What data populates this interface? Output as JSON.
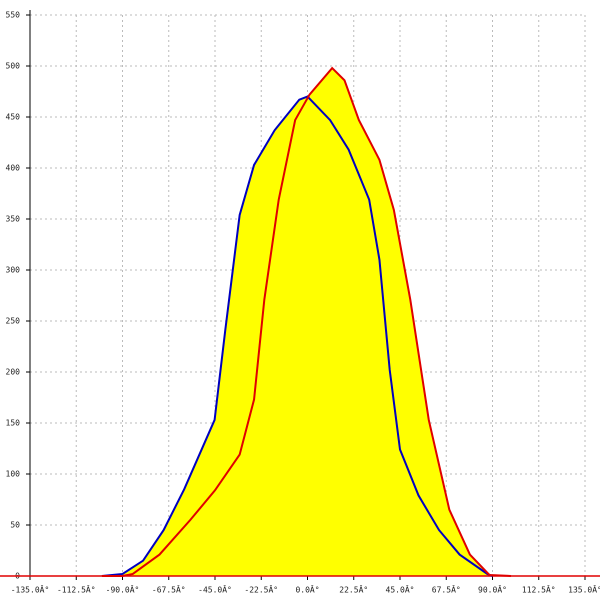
{
  "chart_data": {
    "type": "area-line",
    "series": [
      {
        "color": "#0000c0",
        "fill": "#ffff00",
        "x": [
          -100,
          -90,
          -80,
          -70,
          -60,
          -45.2,
          -40,
          -33,
          -26,
          -16,
          -4,
          0,
          11,
          20,
          30,
          35,
          40,
          45,
          54,
          64,
          74,
          87.5,
          90
        ],
        "values": [
          0,
          2,
          15,
          45,
          85,
          153,
          241,
          354,
          403,
          437,
          467,
          470,
          447,
          418,
          369,
          310,
          202,
          124,
          79,
          45,
          21,
          2,
          0
        ]
      },
      {
        "color": "#e00000",
        "fill": "#ffff00",
        "x": [
          -100,
          -90,
          -85,
          -72,
          -57,
          -45,
          -33,
          -26,
          -21,
          -14,
          -6,
          1,
          12,
          18,
          25,
          35,
          42,
          50,
          59,
          69,
          79,
          88.5,
          99
        ],
        "values": [
          0,
          0,
          2,
          21,
          55,
          84,
          119,
          173,
          271,
          369,
          447,
          472,
          498,
          486,
          447,
          408,
          359,
          271,
          153,
          65,
          21,
          1,
          0
        ]
      }
    ],
    "xlim": [
      -135,
      135
    ],
    "xticks": [
      {
        "value": -135,
        "label": "-135.0Â°"
      },
      {
        "value": -112.5,
        "label": "-112.5Â°"
      },
      {
        "value": -90,
        "label": "-90.0Â°"
      },
      {
        "value": -67.5,
        "label": "-67.5Â°"
      },
      {
        "value": -45,
        "label": "-45.0Â°"
      },
      {
        "value": -22.5,
        "label": "-22.5Â°"
      },
      {
        "value": 0,
        "label": "0.0Â°"
      },
      {
        "value": 22.5,
        "label": "22.5Â°"
      },
      {
        "value": 45,
        "label": "45.0Â°"
      },
      {
        "value": 67.5,
        "label": "67.5Â°"
      },
      {
        "value": 90,
        "label": "90.0Â°"
      },
      {
        "value": 112.5,
        "label": "112.5Â°"
      },
      {
        "value": 135,
        "label": "135.0Â°"
      }
    ],
    "ylim": [
      0,
      550
    ],
    "yticks": [
      0,
      50,
      100,
      150,
      200,
      250,
      300,
      350,
      400,
      450,
      500,
      550
    ],
    "grid": true
  }
}
